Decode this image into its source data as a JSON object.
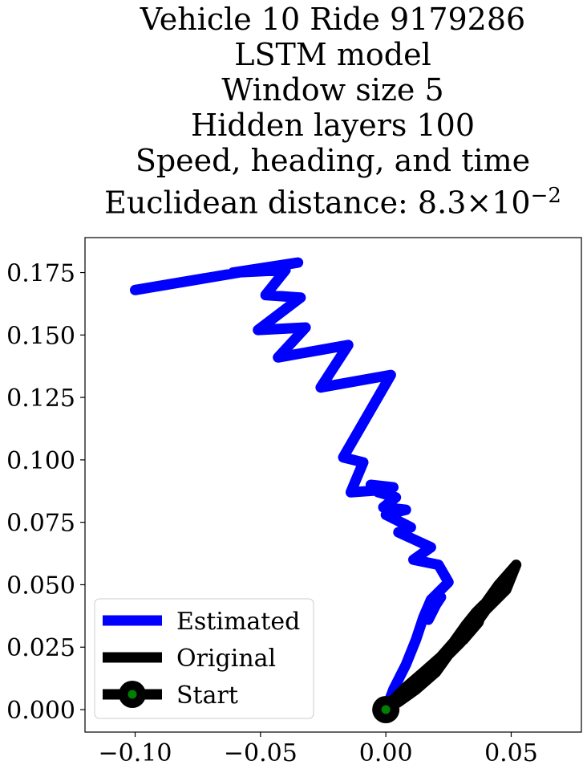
{
  "chart_data": {
    "type": "line",
    "title_lines": [
      "Vehicle 10 Ride 9179286",
      "LSTM model",
      "Window size 5",
      "Hidden layers 100",
      "Speed, heading, and time"
    ],
    "title_metric_prefix": "Euclidean distance: 8.3",
    "title_metric_times": "×",
    "title_metric_base": "10",
    "title_metric_exp": "−2",
    "xlim": [
      -0.12,
      0.078
    ],
    "ylim": [
      -0.009,
      0.189
    ],
    "x_ticks": [
      {
        "value": -0.1,
        "label": "−0.10"
      },
      {
        "value": -0.05,
        "label": "−0.05"
      },
      {
        "value": 0.0,
        "label": "0.00"
      },
      {
        "value": 0.05,
        "label": "0.05"
      }
    ],
    "y_ticks": [
      {
        "value": 0.0,
        "label": "0.000"
      },
      {
        "value": 0.025,
        "label": "0.025"
      },
      {
        "value": 0.05,
        "label": "0.050"
      },
      {
        "value": 0.075,
        "label": "0.075"
      },
      {
        "value": 0.1,
        "label": "0.100"
      },
      {
        "value": 0.125,
        "label": "0.125"
      },
      {
        "value": 0.15,
        "label": "0.150"
      },
      {
        "value": 0.175,
        "label": "0.175"
      }
    ],
    "grid": false,
    "legend_position": "lower-left",
    "series": [
      {
        "name": "Estimated",
        "color": "#0000ff",
        "x": [
          0.0,
          0.003,
          0.008,
          0.012,
          0.015,
          0.018,
          0.017,
          0.02,
          0.022,
          0.018,
          0.025,
          0.021,
          0.011,
          0.018,
          0.005,
          0.01,
          0.0,
          0.008,
          -0.001,
          0.004,
          -0.003,
          0.003,
          -0.006,
          0.0,
          -0.014,
          -0.009,
          -0.017,
          0.002,
          -0.026,
          -0.015,
          -0.043,
          -0.032,
          -0.051,
          -0.034,
          -0.048,
          -0.04,
          -0.061,
          -0.035,
          -0.1
        ],
        "y": [
          0.0,
          0.008,
          0.018,
          0.028,
          0.037,
          0.044,
          0.036,
          0.042,
          0.045,
          0.044,
          0.051,
          0.058,
          0.06,
          0.065,
          0.071,
          0.073,
          0.078,
          0.08,
          0.081,
          0.085,
          0.087,
          0.089,
          0.09,
          0.088,
          0.087,
          0.099,
          0.101,
          0.134,
          0.129,
          0.146,
          0.141,
          0.153,
          0.152,
          0.165,
          0.166,
          0.176,
          0.175,
          0.179,
          0.168
        ]
      },
      {
        "name": "Original",
        "color": "#000000",
        "x": [
          0.0,
          0.015,
          0.028,
          0.035,
          0.045,
          0.052,
          0.048,
          0.04,
          0.035,
          0.03,
          0.025,
          0.02,
          0.012,
          0.005,
          0.0,
          0.01,
          0.02,
          0.027,
          0.032,
          0.036,
          0.039,
          0.037,
          0.031,
          0.024,
          0.015,
          0.008,
          0.003
        ],
        "y": [
          0.0,
          0.013,
          0.025,
          0.036,
          0.05,
          0.058,
          0.048,
          0.04,
          0.033,
          0.027,
          0.022,
          0.015,
          0.008,
          0.003,
          0.0,
          0.009,
          0.019,
          0.027,
          0.034,
          0.039,
          0.042,
          0.035,
          0.028,
          0.023,
          0.015,
          0.009,
          0.004
        ]
      }
    ],
    "start_point": {
      "name": "Start",
      "x": 0.0,
      "y": 0.0,
      "outer_color": "#000000",
      "inner_color": "#008000"
    }
  }
}
